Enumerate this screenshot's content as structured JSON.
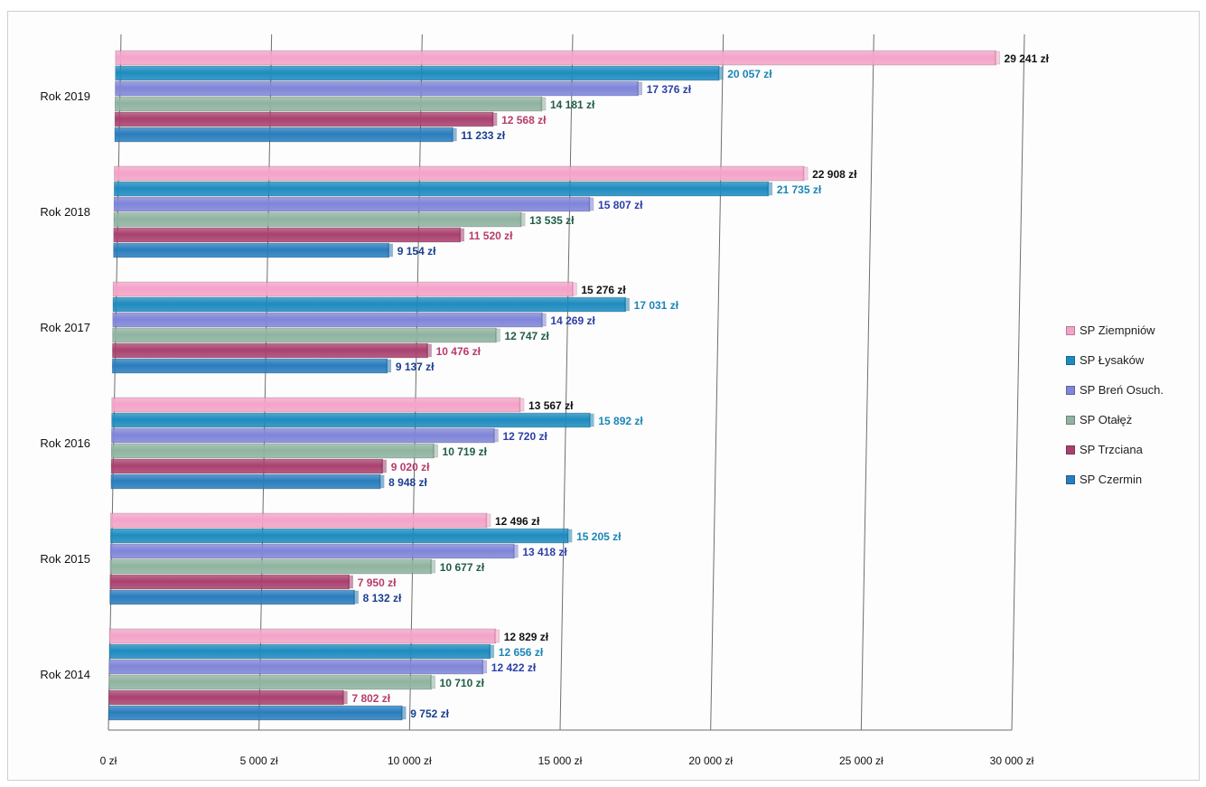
{
  "chart_data": {
    "type": "bar",
    "orientation": "horizontal",
    "style": "3d-cylinder",
    "categories": [
      "Rok 2019",
      "Rok 2018",
      "Rok 2017",
      "Rok 2016",
      "Rok 2015",
      "Rok 2014"
    ],
    "series": [
      {
        "name": "SP Ziempniów",
        "color": "#f4a3c8",
        "values": [
          29241,
          22908,
          15276,
          13567,
          12496,
          12829
        ],
        "labels": [
          "29 241 zł",
          "22 908 zł",
          "15 276 zł",
          "13 567 zł",
          "12 496 zł",
          "12 829 zł"
        ],
        "label_color": "#111111"
      },
      {
        "name": "SP Łysaków",
        "color": "#1e8bbf",
        "values": [
          20057,
          21735,
          17031,
          15892,
          15205,
          12656
        ],
        "labels": [
          "20 057 zł",
          "21 735 zł",
          "17 031 zł",
          "15 892 zł",
          "15 205 zł",
          "12 656 zł"
        ],
        "label_color": "#1a86b8"
      },
      {
        "name": "SP Breń Osuch.",
        "color": "#7f85d8",
        "values": [
          17376,
          15807,
          14269,
          12720,
          13418,
          12422
        ],
        "labels": [
          "17 376 zł",
          "15 807 zł",
          "14 269 zł",
          "12 720 zł",
          "13 418 zł",
          "12 422 zł"
        ],
        "label_color": "#2c3fa8"
      },
      {
        "name": "SP Otałęż",
        "color": "#8fb3a0",
        "values": [
          14181,
          13535,
          12747,
          10719,
          10677,
          10710
        ],
        "labels": [
          "14 181 zł",
          "13 535 zł",
          "12 747 zł",
          "10 719 zł",
          "10 677 zł",
          "10 710 zł"
        ],
        "label_color": "#1f5e46"
      },
      {
        "name": "SP Trzciana",
        "color": "#a9416f",
        "values": [
          12568,
          11520,
          10476,
          9020,
          7950,
          7802
        ],
        "labels": [
          "12 568 zł",
          "11 520 zł",
          "10 476 zł",
          "9 020 zł",
          "7 950 zł",
          "7 802 zł"
        ],
        "label_color": "#b73b6a"
      },
      {
        "name": "SP Czermin",
        "color": "#2a7dbd",
        "values": [
          11233,
          9154,
          9137,
          8948,
          8132,
          9752
        ],
        "labels": [
          "11 233 zł",
          "9 154 zł",
          "9 137 zł",
          "8 948 zł",
          "8 132 zł",
          "9 752 zł"
        ],
        "label_color": "#1a3f8f"
      }
    ],
    "xlim": [
      0,
      30000
    ],
    "x_ticks": [
      0,
      5000,
      10000,
      15000,
      20000,
      25000,
      30000
    ],
    "x_tick_labels": [
      "0 zł",
      "5 000 zł",
      "10 000 zł",
      "15 000 zł",
      "20 000 zł",
      "25 000 zł",
      "30 000 zł"
    ],
    "grid": true,
    "legend_position": "right",
    "title": "",
    "xlabel": "",
    "ylabel": ""
  }
}
